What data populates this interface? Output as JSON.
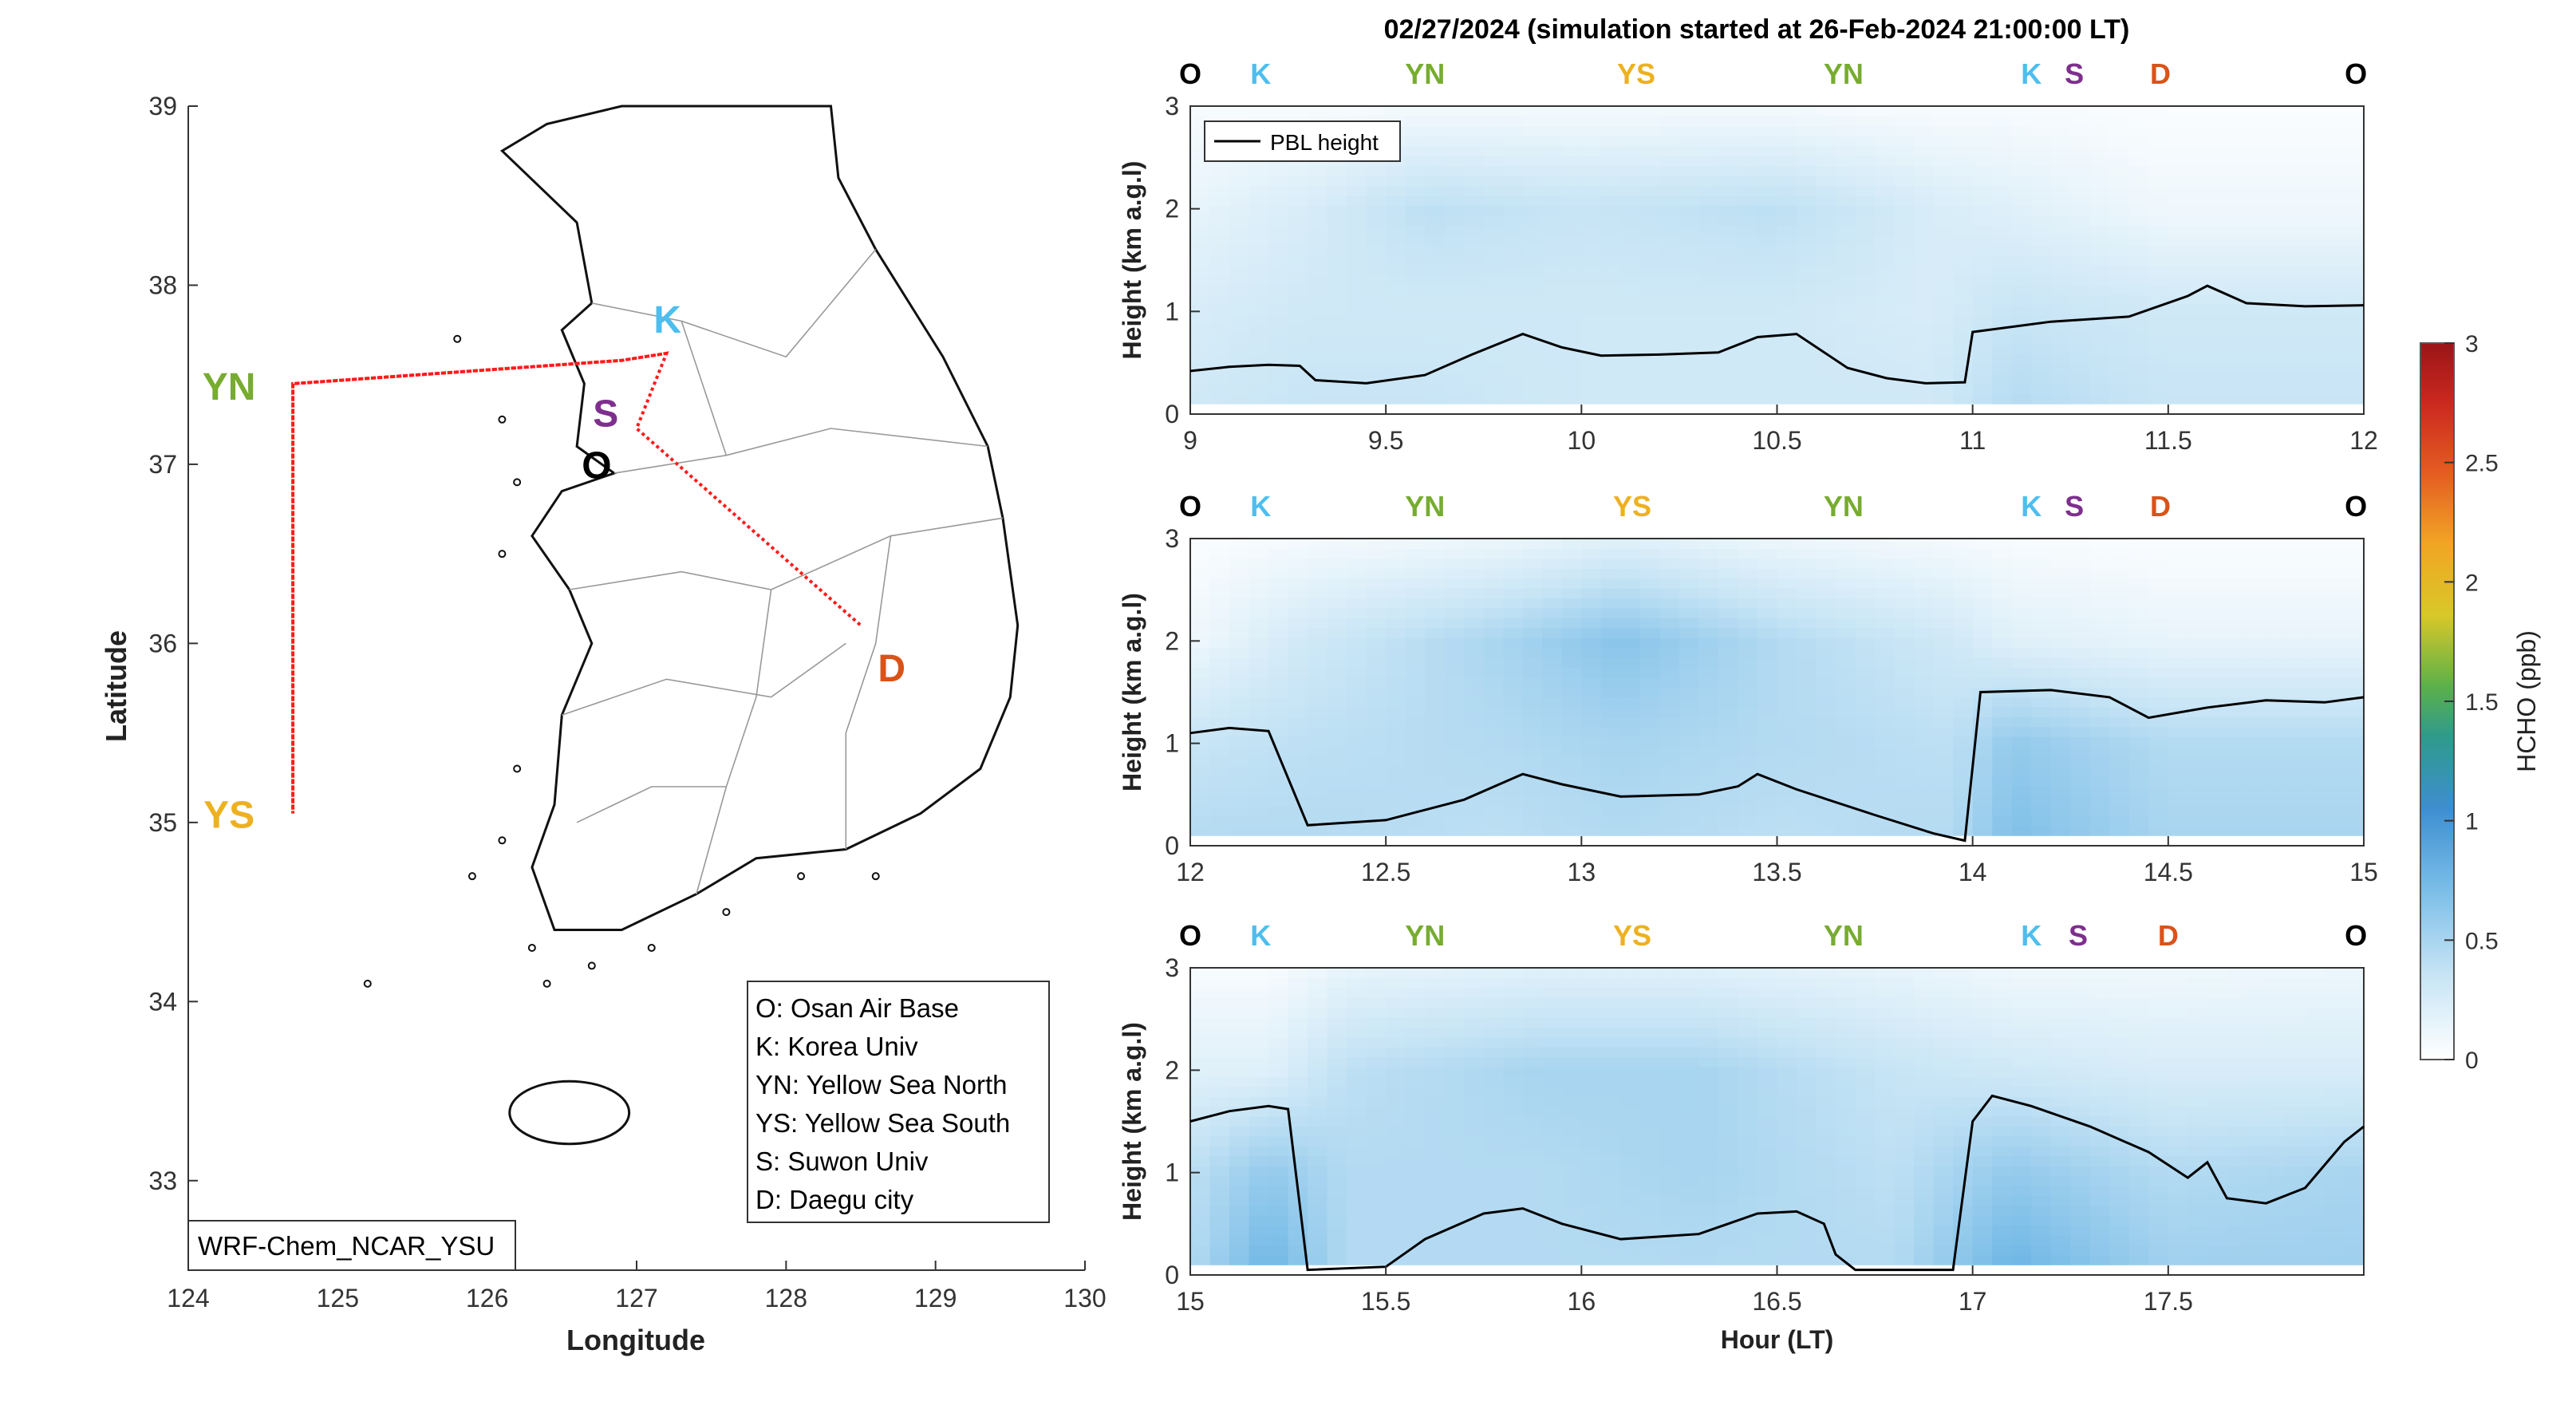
{
  "figure": {
    "title": "02/27/2024 (simulation started at 26-Feb-2024 21:00:00 LT)"
  },
  "map": {
    "xlabel": "Longitude",
    "ylabel": "Latitude",
    "xlim": [
      124,
      130
    ],
    "ylim": [
      32.5,
      39
    ],
    "x_ticks": [
      "124",
      "125",
      "126",
      "127",
      "128",
      "129",
      "130"
    ],
    "y_ticks": [
      "33",
      "34",
      "35",
      "36",
      "37",
      "38",
      "39"
    ],
    "model_label": "WRF-Chem_NCAR_YSU",
    "sites": [
      {
        "code": "YN",
        "lon": 124.7,
        "lat": 37.45,
        "color": "#77ac30"
      },
      {
        "code": "YS",
        "lon": 124.7,
        "lat": 35.05,
        "color": "#edb120"
      },
      {
        "code": "K",
        "lon": 127.1,
        "lat": 37.7,
        "color": "#4dbeee"
      },
      {
        "code": "S",
        "lon": 126.9,
        "lat": 37.3,
        "color": "#7e2f8e"
      },
      {
        "code": "O",
        "lon": 126.85,
        "lat": 37.1,
        "color": "#000000"
      },
      {
        "code": "D",
        "lon": 128.6,
        "lat": 35.9,
        "color": "#d95319"
      }
    ],
    "flight_track": [
      [
        127.2,
        37.62
      ],
      [
        126.9,
        37.58
      ],
      [
        124.7,
        37.45
      ],
      [
        124.7,
        35.05
      ],
      [
        124.7,
        37.45
      ],
      [
        126.9,
        37.58
      ],
      [
        127.2,
        37.62
      ],
      [
        127.0,
        37.2
      ],
      [
        128.5,
        36.1
      ]
    ],
    "legend": [
      "O: Osan Air Base",
      "K: Korea Univ",
      "YN: Yellow Sea North",
      "YS: Yellow Sea South",
      "S: Suwon Univ",
      "D: Daegu city"
    ]
  },
  "colorbar": {
    "label": "HCHO (ppb)",
    "range": [
      0,
      3
    ],
    "ticks": [
      "0",
      "0.5",
      "1",
      "1.5",
      "2",
      "2.5",
      "3"
    ]
  },
  "chart_data": [
    {
      "type": "heatmap",
      "xlim": [
        9,
        12
      ],
      "ylim": [
        0,
        3
      ],
      "ylabel": "Height (km a.g.l)",
      "xlabel": "",
      "x_ticks": [
        "9",
        "9.5",
        "10",
        "10.5",
        "11",
        "11.5",
        "12"
      ],
      "y_ticks": [
        "0",
        "1",
        "2",
        "3"
      ],
      "legend": "PBL height",
      "site_labels": [
        {
          "code": "O",
          "x": 9.0
        },
        {
          "code": "K",
          "x": 9.18
        },
        {
          "code": "YN",
          "x": 9.6
        },
        {
          "code": "YS",
          "x": 10.14
        },
        {
          "code": "YN",
          "x": 10.67
        },
        {
          "code": "K",
          "x": 11.15
        },
        {
          "code": "S",
          "x": 11.26
        },
        {
          "code": "D",
          "x": 11.48
        },
        {
          "code": "O",
          "x": 11.98
        }
      ],
      "pbl_x": [
        9.0,
        9.1,
        9.2,
        9.28,
        9.32,
        9.45,
        9.6,
        9.72,
        9.85,
        9.95,
        10.05,
        10.2,
        10.35,
        10.45,
        10.55,
        10.68,
        10.78,
        10.88,
        10.98,
        11.0,
        11.2,
        11.4,
        11.55,
        11.6,
        11.7,
        11.85,
        12.0
      ],
      "pbl_y": [
        0.42,
        0.46,
        0.48,
        0.47,
        0.33,
        0.3,
        0.38,
        0.58,
        0.78,
        0.65,
        0.57,
        0.58,
        0.6,
        0.75,
        0.78,
        0.45,
        0.35,
        0.3,
        0.31,
        0.8,
        0.9,
        0.95,
        1.15,
        1.25,
        1.08,
        1.05,
        1.06
      ],
      "hcho_profile": [
        {
          "x": 9.0,
          "z": [
            0.3,
            0.25,
            0.15,
            0.05
          ]
        },
        {
          "x": 9.3,
          "z": [
            0.35,
            0.3,
            0.25,
            0.05
          ]
        },
        {
          "x": 9.6,
          "z": [
            0.35,
            0.3,
            0.4,
            0.07
          ]
        },
        {
          "x": 10.0,
          "z": [
            0.3,
            0.3,
            0.35,
            0.07
          ]
        },
        {
          "x": 10.5,
          "z": [
            0.3,
            0.3,
            0.4,
            0.07
          ]
        },
        {
          "x": 10.9,
          "z": [
            0.3,
            0.25,
            0.25,
            0.05
          ]
        },
        {
          "x": 11.1,
          "z": [
            0.45,
            0.35,
            0.2,
            0.05
          ]
        },
        {
          "x": 11.5,
          "z": [
            0.35,
            0.3,
            0.1,
            0.03
          ]
        },
        {
          "x": 12.0,
          "z": [
            0.35,
            0.3,
            0.1,
            0.03
          ]
        }
      ]
    },
    {
      "type": "heatmap",
      "xlim": [
        12,
        15
      ],
      "ylim": [
        0,
        3
      ],
      "ylabel": "Height (km a.g.l)",
      "xlabel": "",
      "x_ticks": [
        "12",
        "12.5",
        "13",
        "13.5",
        "14",
        "14.5",
        "15"
      ],
      "y_ticks": [
        "0",
        "1",
        "2",
        "3"
      ],
      "site_labels": [
        {
          "code": "O",
          "x": 12.0
        },
        {
          "code": "K",
          "x": 12.18
        },
        {
          "code": "YN",
          "x": 12.6
        },
        {
          "code": "YS",
          "x": 13.13
        },
        {
          "code": "YN",
          "x": 13.67
        },
        {
          "code": "K",
          "x": 14.15
        },
        {
          "code": "S",
          "x": 14.26
        },
        {
          "code": "D",
          "x": 14.48
        },
        {
          "code": "O",
          "x": 14.98
        }
      ],
      "pbl_x": [
        12.0,
        12.1,
        12.2,
        12.3,
        12.5,
        12.7,
        12.85,
        12.95,
        13.1,
        13.3,
        13.4,
        13.45,
        13.55,
        13.75,
        13.9,
        13.98,
        14.02,
        14.2,
        14.35,
        14.45,
        14.6,
        14.75,
        14.9,
        15.0
      ],
      "pbl_y": [
        1.1,
        1.15,
        1.12,
        0.2,
        0.25,
        0.45,
        0.7,
        0.6,
        0.48,
        0.5,
        0.58,
        0.7,
        0.55,
        0.3,
        0.12,
        0.05,
        1.5,
        1.52,
        1.45,
        1.25,
        1.35,
        1.42,
        1.4,
        1.45
      ],
      "hcho_profile": [
        {
          "x": 12.0,
          "z": [
            0.45,
            0.35,
            0.1,
            0.03
          ]
        },
        {
          "x": 12.3,
          "z": [
            0.45,
            0.4,
            0.3,
            0.07
          ]
        },
        {
          "x": 12.8,
          "z": [
            0.4,
            0.45,
            0.5,
            0.12
          ]
        },
        {
          "x": 13.1,
          "z": [
            0.45,
            0.5,
            0.65,
            0.2
          ]
        },
        {
          "x": 13.5,
          "z": [
            0.4,
            0.45,
            0.45,
            0.12
          ]
        },
        {
          "x": 13.95,
          "z": [
            0.45,
            0.4,
            0.3,
            0.07
          ]
        },
        {
          "x": 14.1,
          "z": [
            0.7,
            0.6,
            0.2,
            0.05
          ]
        },
        {
          "x": 14.5,
          "z": [
            0.5,
            0.45,
            0.15,
            0.03
          ]
        },
        {
          "x": 15.0,
          "z": [
            0.5,
            0.45,
            0.15,
            0.03
          ]
        }
      ]
    },
    {
      "type": "heatmap",
      "xlim": [
        15,
        18
      ],
      "ylim": [
        0,
        3
      ],
      "ylabel": "Height (km a.g.l)",
      "xlabel": "Hour (LT)",
      "x_ticks": [
        "15",
        "15.5",
        "16",
        "16.5",
        "17",
        "17.5"
      ],
      "y_ticks": [
        "0",
        "1",
        "2",
        "3"
      ],
      "site_labels": [
        {
          "code": "O",
          "x": 15.0
        },
        {
          "code": "K",
          "x": 15.18
        },
        {
          "code": "YN",
          "x": 15.6
        },
        {
          "code": "YS",
          "x": 16.13
        },
        {
          "code": "YN",
          "x": 16.67
        },
        {
          "code": "K",
          "x": 17.15
        },
        {
          "code": "S",
          "x": 17.27
        },
        {
          "code": "D",
          "x": 17.5
        },
        {
          "code": "O",
          "x": 17.98
        }
      ],
      "pbl_x": [
        15.0,
        15.1,
        15.2,
        15.25,
        15.3,
        15.5,
        15.6,
        15.75,
        15.85,
        15.95,
        16.1,
        16.3,
        16.45,
        16.55,
        16.62,
        16.65,
        16.7,
        16.8,
        16.95,
        17.0,
        17.05,
        17.15,
        17.3,
        17.45,
        17.55,
        17.6,
        17.65,
        17.75,
        17.85,
        17.95,
        18.0
      ],
      "pbl_y": [
        1.5,
        1.6,
        1.65,
        1.62,
        0.05,
        0.08,
        0.35,
        0.6,
        0.65,
        0.5,
        0.35,
        0.4,
        0.6,
        0.62,
        0.5,
        0.2,
        0.05,
        0.05,
        0.05,
        1.5,
        1.75,
        1.65,
        1.45,
        1.2,
        0.95,
        1.1,
        0.75,
        0.7,
        0.85,
        1.3,
        1.45
      ],
      "hcho_profile": [
        {
          "x": 15.0,
          "z": [
            0.45,
            0.4,
            0.2,
            0.05
          ]
        },
        {
          "x": 15.2,
          "z": [
            0.8,
            0.6,
            0.2,
            0.05
          ]
        },
        {
          "x": 15.4,
          "z": [
            0.45,
            0.45,
            0.4,
            0.15
          ]
        },
        {
          "x": 15.9,
          "z": [
            0.45,
            0.45,
            0.5,
            0.2
          ]
        },
        {
          "x": 16.3,
          "z": [
            0.45,
            0.5,
            0.5,
            0.2
          ]
        },
        {
          "x": 16.8,
          "z": [
            0.45,
            0.4,
            0.35,
            0.15
          ]
        },
        {
          "x": 17.1,
          "z": [
            0.8,
            0.6,
            0.3,
            0.1
          ]
        },
        {
          "x": 17.5,
          "z": [
            0.55,
            0.45,
            0.25,
            0.1
          ]
        },
        {
          "x": 18.0,
          "z": [
            0.55,
            0.5,
            0.25,
            0.12
          ]
        }
      ]
    }
  ]
}
